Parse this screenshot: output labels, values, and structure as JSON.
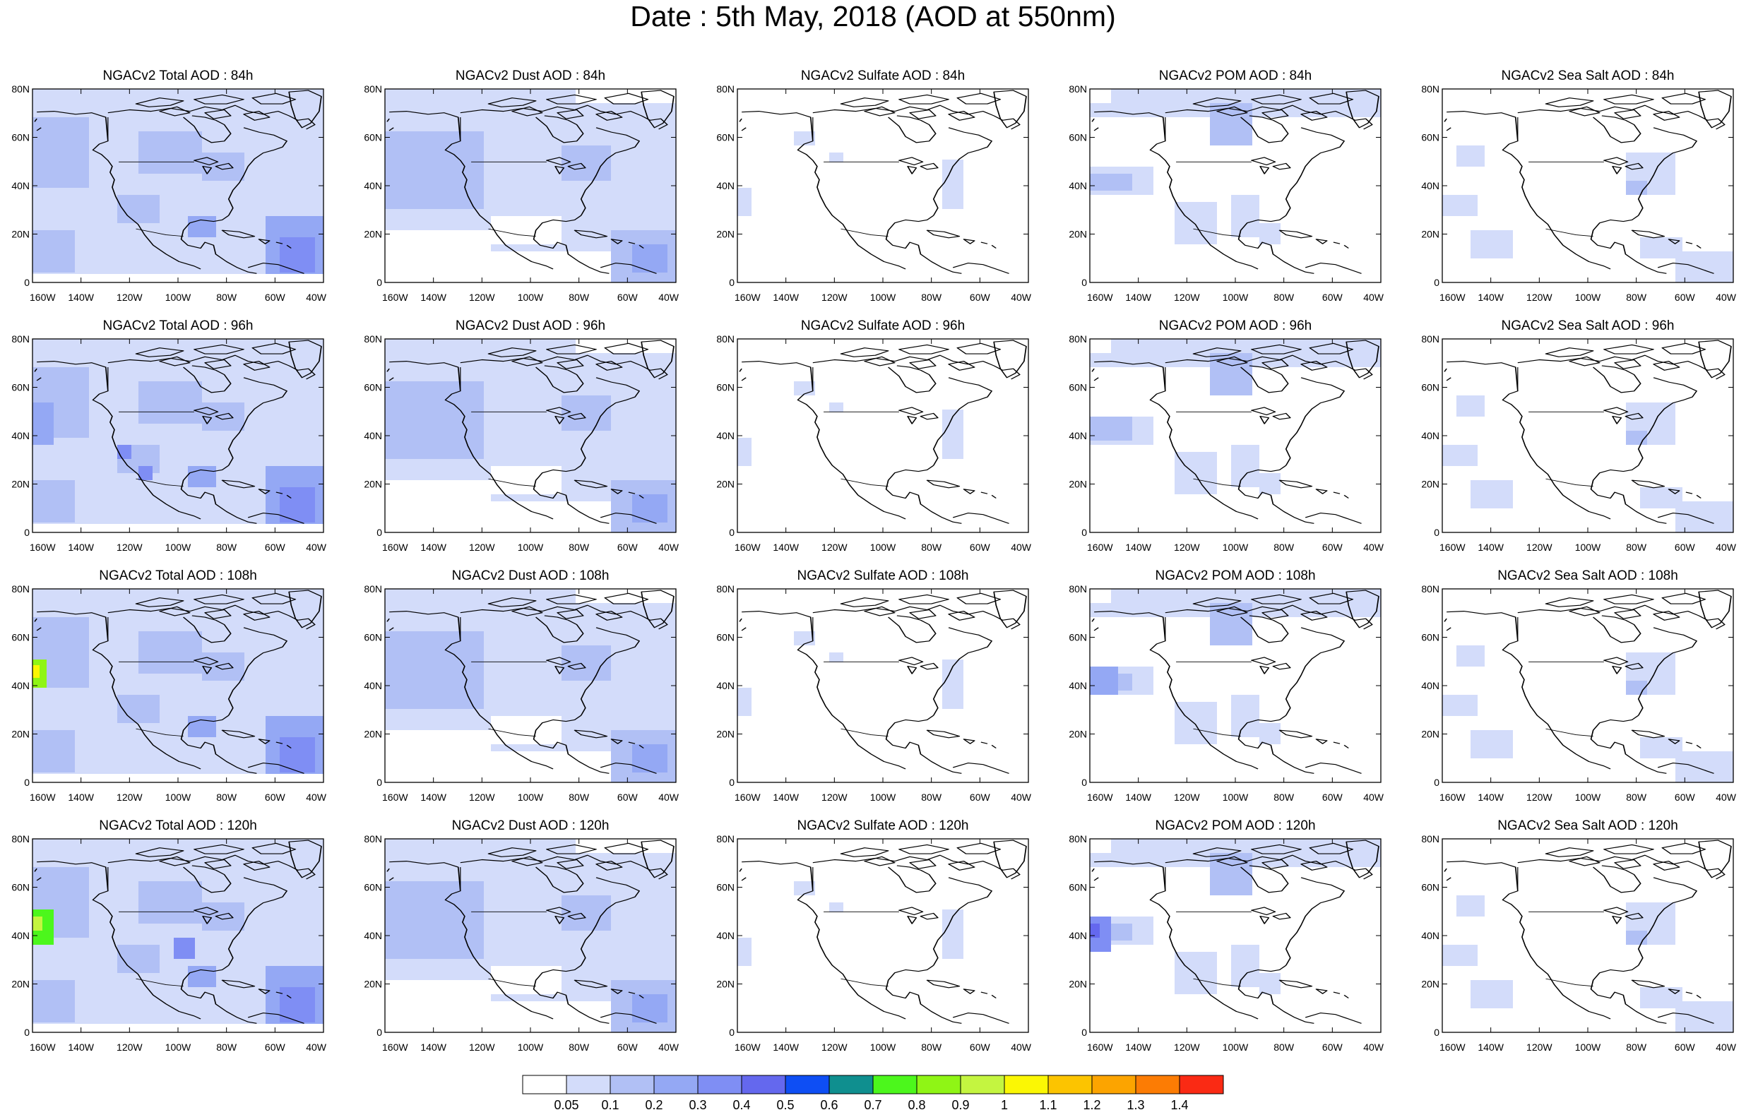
{
  "title": "Date : 5th May, 2018 (AOD at 550nm)",
  "rows": [
    "84h",
    "96h",
    "108h",
    "120h"
  ],
  "columns": [
    {
      "key": "total",
      "prefix": "NGACv2 Total AOD : "
    },
    {
      "key": "dust",
      "prefix": "NGACv2 Dust AOD : "
    },
    {
      "key": "sulfate",
      "prefix": "NGACv2 Sulfate AOD : "
    },
    {
      "key": "pom",
      "prefix": "NGACv2 POM AOD : "
    },
    {
      "key": "seasalt",
      "prefix": "NGACv2 Sea Salt AOD : ",
      "last_row_prefix": "NGACv2 Sea Salt  AOD : "
    }
  ],
  "lat_labels": [
    "0",
    "20N",
    "40N",
    "60N",
    "80N"
  ],
  "lat_values": [
    0,
    20,
    40,
    60,
    80
  ],
  "lon_labels": [
    "160W",
    "140W",
    "120W",
    "100W",
    "80W",
    "60W",
    "40W"
  ],
  "lon_values": [
    -160,
    -140,
    -120,
    -100,
    -80,
    -60,
    -40
  ],
  "extent": {
    "lon": [
      -160,
      -40
    ],
    "lat": [
      0,
      80
    ]
  },
  "colorbar": {
    "colors": [
      "#ffffff",
      "#d3dcfa",
      "#b1c0f5",
      "#94a8f4",
      "#7f8ef4",
      "#6468ee",
      "#0e4ef4",
      "#0f8f8f",
      "#4cf71c",
      "#8ff515",
      "#c4f540",
      "#fbf704",
      "#fcc400",
      "#fca400",
      "#fc7c04",
      "#fa2a14"
    ],
    "labels": [
      "0.05",
      "0.1",
      "0.2",
      "0.3",
      "0.4",
      "0.5",
      "0.6",
      "0.7",
      "0.8",
      "0.9",
      "1",
      "1.1",
      "1.2",
      "1.3",
      "1.4"
    ]
  }
}
